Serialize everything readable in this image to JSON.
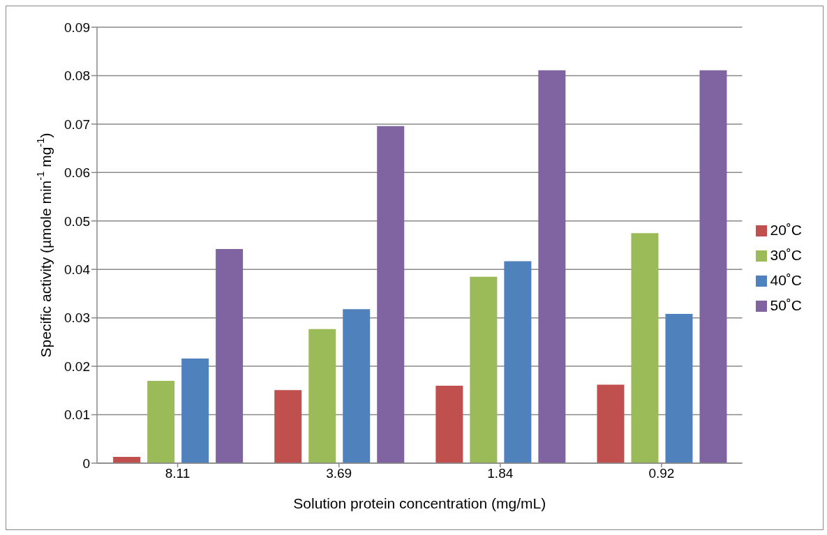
{
  "chart_data": {
    "type": "bar",
    "xlabel": "Solution protein concentration (mg/mL)",
    "ylabel": "Specific activity (µmole min$^{-1}$ mg$^{-1}$)",
    "categories": [
      "8.11",
      "3.69",
      "1.84",
      "0.92"
    ],
    "series": [
      {
        "name": "20˚C",
        "color": "#c0504d",
        "values": [
          0.0013,
          0.0151,
          0.016,
          0.0162
        ]
      },
      {
        "name": "30˚C",
        "color": "#9bbb59",
        "values": [
          0.017,
          0.0277,
          0.0385,
          0.0475
        ]
      },
      {
        "name": "40˚C",
        "color": "#4f81bd",
        "values": [
          0.0216,
          0.0318,
          0.0417,
          0.0308
        ]
      },
      {
        "name": "50˚C",
        "color": "#8064a2",
        "values": [
          0.0442,
          0.0696,
          0.0811,
          0.0811
        ]
      }
    ],
    "ylim": [
      0,
      0.09
    ],
    "yticks": [
      0,
      0.01,
      0.02,
      0.03,
      0.04,
      0.05,
      0.06,
      0.07,
      0.08,
      0.09
    ],
    "grid": "y",
    "legend": "right"
  }
}
